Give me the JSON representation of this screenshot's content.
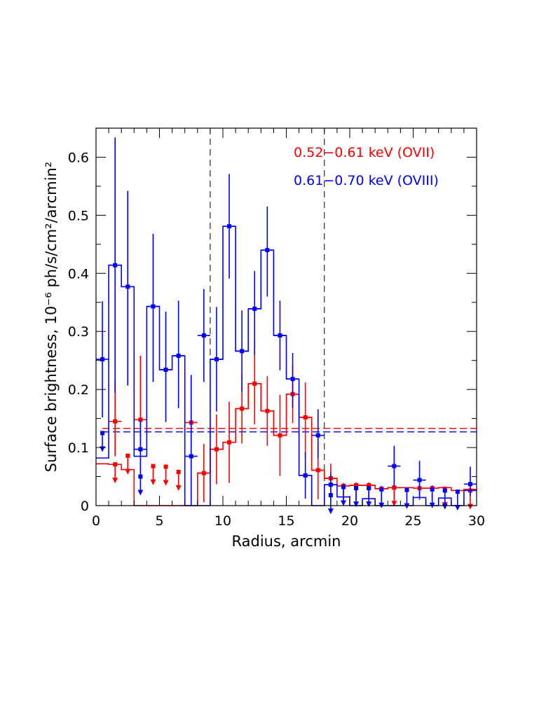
{
  "chart_data": {
    "type": "step",
    "title": "",
    "xlabel": "Radius, arcmin",
    "ylabel": "Surface brightness, 10⁻⁶ ph/s/cm²/arcmin²",
    "xlim": [
      0,
      30
    ],
    "ylim": [
      0,
      0.65
    ],
    "x_ticks": [
      0,
      5,
      10,
      15,
      20,
      25,
      30
    ],
    "y_ticks": [
      0,
      0.1,
      0.2,
      0.3,
      0.4,
      0.5,
      0.6
    ],
    "x_tick_labels": [
      "0",
      "5",
      "10",
      "15",
      "20",
      "25",
      "30"
    ],
    "y_tick_labels": [
      "0",
      "0.1",
      "0.2",
      "0.3",
      "0.4",
      "0.5",
      "0.6"
    ],
    "grid": false,
    "vertical_markers": [
      9,
      18
    ],
    "bin_edges": [
      0,
      1,
      2,
      3,
      4,
      5,
      6,
      7,
      8,
      9,
      10,
      11,
      12,
      13,
      14,
      15,
      16,
      17,
      18,
      19,
      20,
      21,
      22,
      23,
      24,
      25,
      26,
      27,
      28,
      29,
      30
    ],
    "series": [
      {
        "name": "0.52−0.61 keV (OVII)",
        "color": "#ff0000",
        "values": [
          0.072,
          0.071,
          0.062,
          0.0,
          0.0,
          0.0,
          0.0,
          0.0,
          0.056,
          0.097,
          0.109,
          0.167,
          0.21,
          0.163,
          0.121,
          0.192,
          0.152,
          0.061,
          0.047,
          0.034,
          0.035,
          0.035,
          0.029,
          0.031,
          0.031,
          0.03,
          0.03,
          0.031,
          0.026,
          0.028
        ],
        "error_low": [
          0.07,
          0.06,
          0.07,
          0.04,
          0.06,
          0.06,
          0.05,
          0.04,
          0.05,
          0.06,
          0.07,
          0.06,
          0.07,
          0.06,
          0.07,
          0.05,
          0.07,
          0.05,
          0.025,
          0.025,
          0.025,
          0.025,
          0.02,
          0.02,
          0.02,
          0.02,
          0.02,
          0.02,
          0.02,
          0.02
        ],
        "error_high": [
          0.07,
          0.07,
          0.07,
          0.11,
          0.06,
          0.06,
          0.05,
          0.08,
          0.05,
          0.06,
          0.07,
          0.06,
          0.07,
          0.06,
          0.07,
          0.05,
          0.06,
          0.05,
          0.025,
          0.005,
          0.005,
          0.005,
          0.005,
          0.005,
          0.005,
          0.005,
          0.005,
          0.005,
          0.005,
          0.005
        ],
        "upper_limit_markers": [
          0,
          0.071,
          0.086,
          0,
          0.068,
          0.067,
          0.058,
          0,
          0,
          0,
          0,
          0,
          0,
          0,
          0,
          0,
          0,
          0,
          0,
          0,
          0,
          0,
          0,
          0.031,
          0,
          0,
          0,
          0.029,
          0,
          0.026
        ],
        "points": [
          0.0,
          0.145,
          0.0,
          0.148,
          0.0,
          0.0,
          0.0,
          0.143,
          0.056,
          0.097,
          0.109,
          0.167,
          0.21,
          0.163,
          0.121,
          0.192,
          0.152,
          0.061,
          0.047,
          0.034,
          0.035,
          0.035,
          0.029,
          0.031,
          0.0,
          0.03,
          0.03,
          0.0,
          0.0,
          0.0
        ],
        "background_level": 0.133
      },
      {
        "name": "0.61−0.70 keV (OVIII)",
        "color": "#0000ff",
        "values": [
          0.082,
          0.414,
          0.377,
          0.085,
          0.343,
          0.234,
          0.258,
          0.0,
          0.0,
          0.252,
          0.481,
          0.266,
          0.339,
          0.44,
          0.293,
          0.218,
          0.052,
          0.0,
          0.036,
          0.015,
          0.0,
          0.012,
          0.0,
          0.0,
          0.0,
          0.014,
          0.0,
          0.013,
          0.0,
          0.026
        ],
        "error_low": [
          0.1,
          0.22,
          0.17,
          0.05,
          0.13,
          0.09,
          0.09,
          0.12,
          0.08,
          0.09,
          0.09,
          0.07,
          0.08,
          0.08,
          0.06,
          0.05,
          0.04,
          0.04,
          0.025,
          0.02,
          0.02,
          0.02,
          0.02,
          0.035,
          0.02,
          0.03,
          0.02,
          0.02,
          0.02,
          0.02
        ],
        "error_high": [
          0.1,
          0.22,
          0.165,
          0.05,
          0.125,
          0.1,
          0.095,
          0.14,
          0.08,
          0.09,
          0.09,
          0.07,
          0.065,
          0.075,
          0.06,
          0.045,
          0.04,
          0.045,
          0.02,
          0.005,
          0.005,
          0.005,
          0.005,
          0.035,
          0.005,
          0.033,
          0.005,
          0.005,
          0.005,
          0.03
        ],
        "upper_limit_markers": [
          0.125,
          0,
          0,
          0.05,
          0,
          0,
          0,
          0,
          0,
          0,
          0,
          0,
          0,
          0,
          0,
          0,
          0,
          0,
          0.018,
          0.032,
          0.03,
          0.03,
          0.028,
          0,
          0.027,
          0,
          0.028,
          0.026,
          0.024,
          0
        ],
        "points": [
          0.252,
          0.414,
          0.377,
          0.097,
          0.343,
          0.234,
          0.258,
          0.085,
          0.293,
          0.252,
          0.481,
          0.266,
          0.339,
          0.44,
          0.293,
          0.218,
          0.052,
          0.121,
          0.036,
          0.0,
          0.0,
          0.0,
          0.0,
          0.068,
          0.0,
          0.044,
          0.0,
          0.0,
          0.0,
          0.037
        ],
        "background_level": 0.127
      }
    ],
    "legend_position": "top-right"
  }
}
